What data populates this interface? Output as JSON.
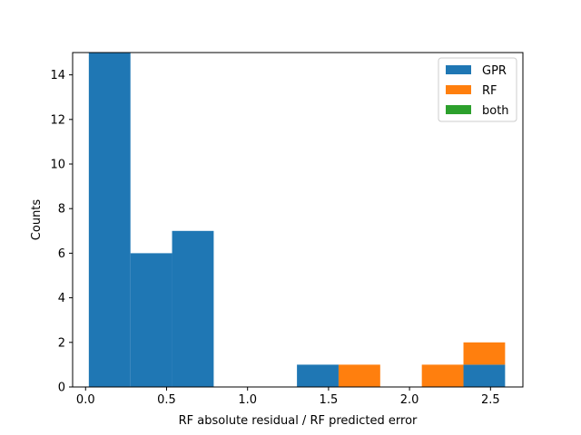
{
  "chart_data": {
    "type": "bar",
    "stacked": true,
    "xlabel": "RF absolute residual / RF predicted error",
    "ylabel": "Counts",
    "xlim": [
      -0.08,
      2.7
    ],
    "ylim": [
      0,
      15
    ],
    "xticks": [
      0.0,
      0.5,
      1.0,
      1.5,
      2.0,
      2.5
    ],
    "xtick_labels": [
      "0.0",
      "0.5",
      "1.0",
      "1.5",
      "2.0",
      "2.5"
    ],
    "yticks": [
      0,
      2,
      4,
      6,
      8,
      10,
      12,
      14
    ],
    "ytick_labels": [
      "0",
      "2",
      "4",
      "6",
      "8",
      "10",
      "12",
      "14"
    ],
    "bin_edges": [
      0.02,
      0.277,
      0.534,
      0.791,
      1.048,
      1.305,
      1.562,
      1.819,
      2.076,
      2.333,
      2.59
    ],
    "series": [
      {
        "name": "GPR",
        "color": "#1f77b4",
        "values": [
          15,
          6,
          7,
          0,
          0,
          1,
          0,
          0,
          0,
          1
        ]
      },
      {
        "name": "RF",
        "color": "#ff7f0e",
        "values": [
          0,
          0,
          0,
          0,
          0,
          0,
          1,
          0,
          1,
          1
        ]
      },
      {
        "name": "both",
        "color": "#2ca02c",
        "values": [
          0,
          0,
          0,
          0,
          0,
          0,
          0,
          0,
          0,
          0
        ]
      }
    ],
    "legend_position": "top-right",
    "grid": false
  }
}
